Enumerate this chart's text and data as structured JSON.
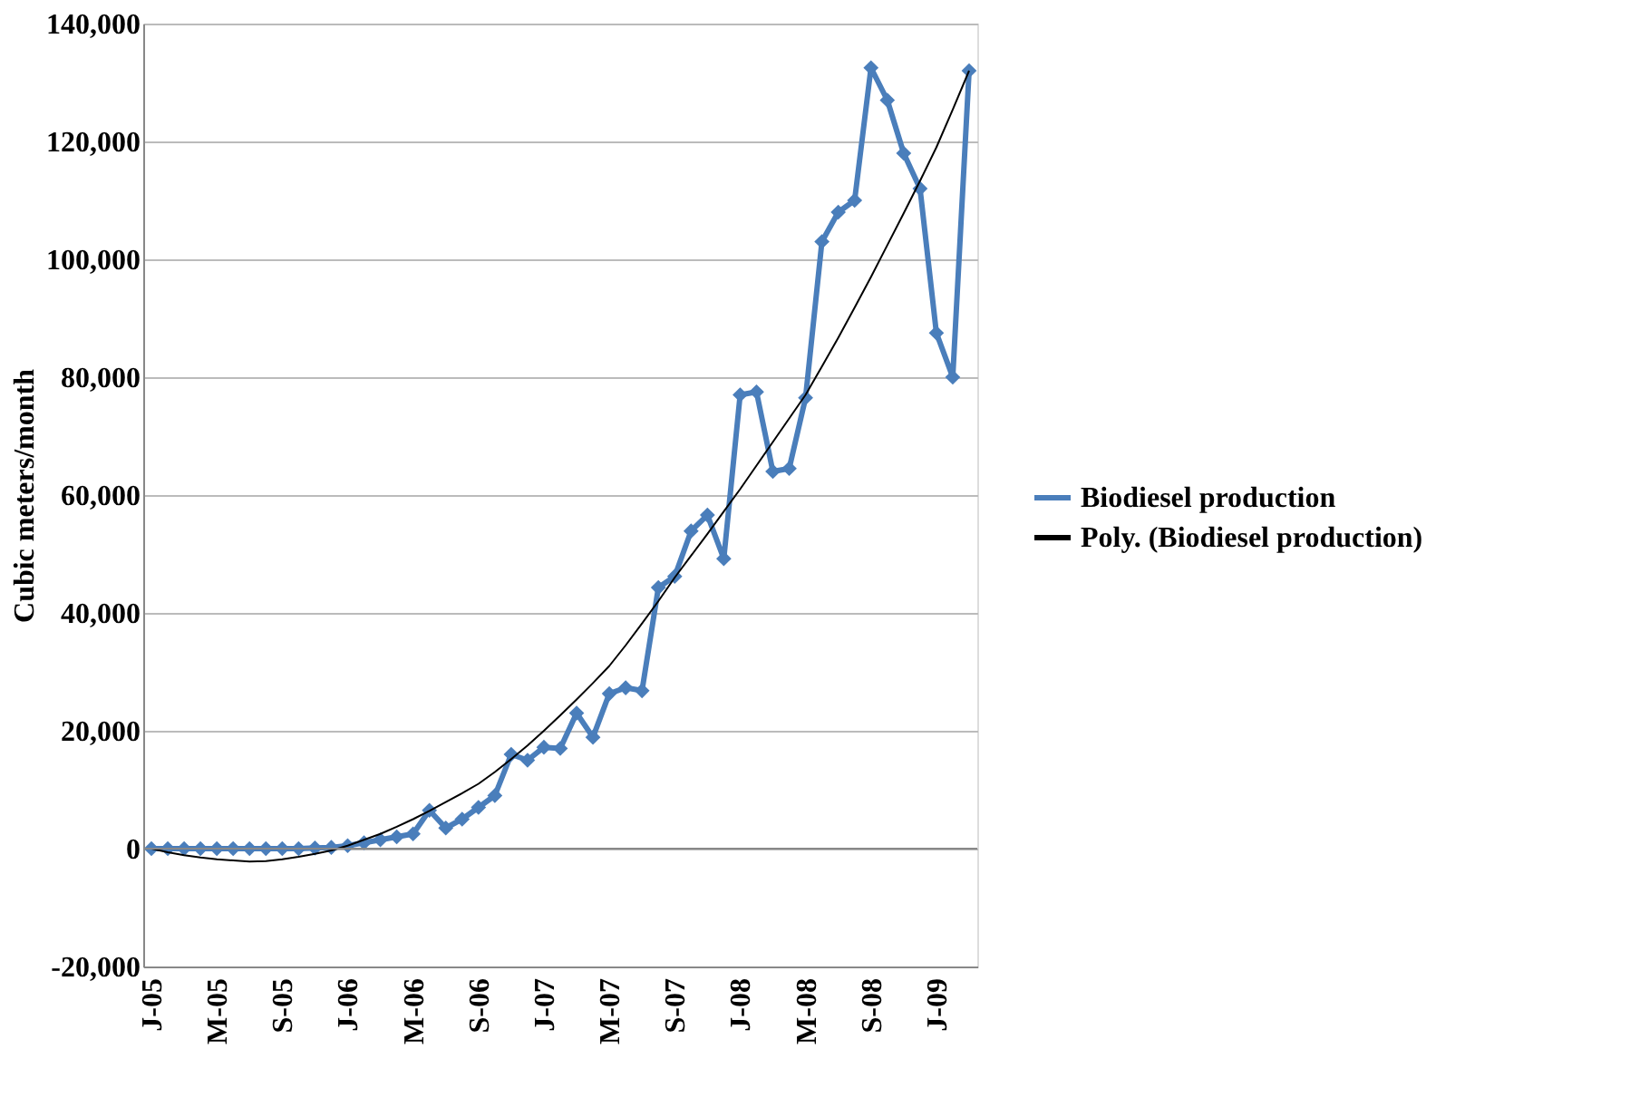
{
  "chart_data": {
    "type": "line",
    "ylabel": "Cubic meters/month",
    "categories": [
      "J-05",
      null,
      null,
      null,
      "M-05",
      null,
      null,
      null,
      "S-05",
      null,
      null,
      null,
      "J-06",
      null,
      null,
      null,
      "M-06",
      null,
      null,
      null,
      "S-06",
      null,
      null,
      null,
      "J-07",
      null,
      null,
      null,
      "M-07",
      null,
      null,
      null,
      "S-07",
      null,
      null,
      null,
      "J-08",
      null,
      null,
      null,
      "M-08",
      null,
      null,
      null,
      "S-08",
      null,
      null,
      null,
      "J-09",
      null,
      null
    ],
    "series": [
      {
        "name": "Biodiesel production",
        "color": "#4a7ebb",
        "marker": "diamond",
        "line_style": "solid",
        "values": [
          0,
          0,
          0,
          0,
          0,
          0,
          0,
          0,
          0,
          0,
          100,
          200,
          500,
          1000,
          1500,
          2000,
          2500,
          6500,
          3500,
          5000,
          7000,
          9000,
          16000,
          15000,
          17200,
          17000,
          23000,
          18900,
          26300,
          27300,
          26800,
          44300,
          46200,
          53900,
          56600,
          49200,
          77000,
          77500,
          64000,
          64500,
          76500,
          103000,
          108000,
          110000,
          132500,
          127000,
          118000,
          112000,
          87500,
          80000,
          132000
        ]
      },
      {
        "name": "Poly. (Biodiesel production)",
        "color": "#000000",
        "marker": "none",
        "line_style": "solid",
        "values": [
          0,
          -600,
          -1100,
          -1500,
          -1800,
          -2000,
          -2200,
          -2100,
          -1800,
          -1400,
          -900,
          -300,
          500,
          1500,
          2500,
          3700,
          5000,
          6400,
          7900,
          9400,
          11000,
          13000,
          15200,
          17500,
          20000,
          22600,
          25300,
          28100,
          31000,
          34500,
          38200,
          42000,
          46000,
          49700,
          53400,
          57200,
          61000,
          65000,
          69000,
          73000,
          77000,
          81800,
          86700,
          91800,
          97000,
          102400,
          107800,
          113300,
          119000,
          125400,
          132000
        ]
      }
    ],
    "ylim": [
      -20000,
      140000
    ],
    "yticks": [
      {
        "value": -20000,
        "label": "-20,000"
      },
      0,
      {
        "value": 20000,
        "label": "20,000"
      },
      {
        "value": 40000,
        "label": "40,000"
      },
      {
        "value": 60000,
        "label": "60,000"
      },
      {
        "value": 80000,
        "label": "80,000"
      },
      {
        "value": 100000,
        "label": "100,000"
      },
      {
        "value": 120000,
        "label": "120,000"
      },
      {
        "value": 140000,
        "label": "140,000"
      }
    ],
    "grid": "y",
    "legend": "right"
  }
}
